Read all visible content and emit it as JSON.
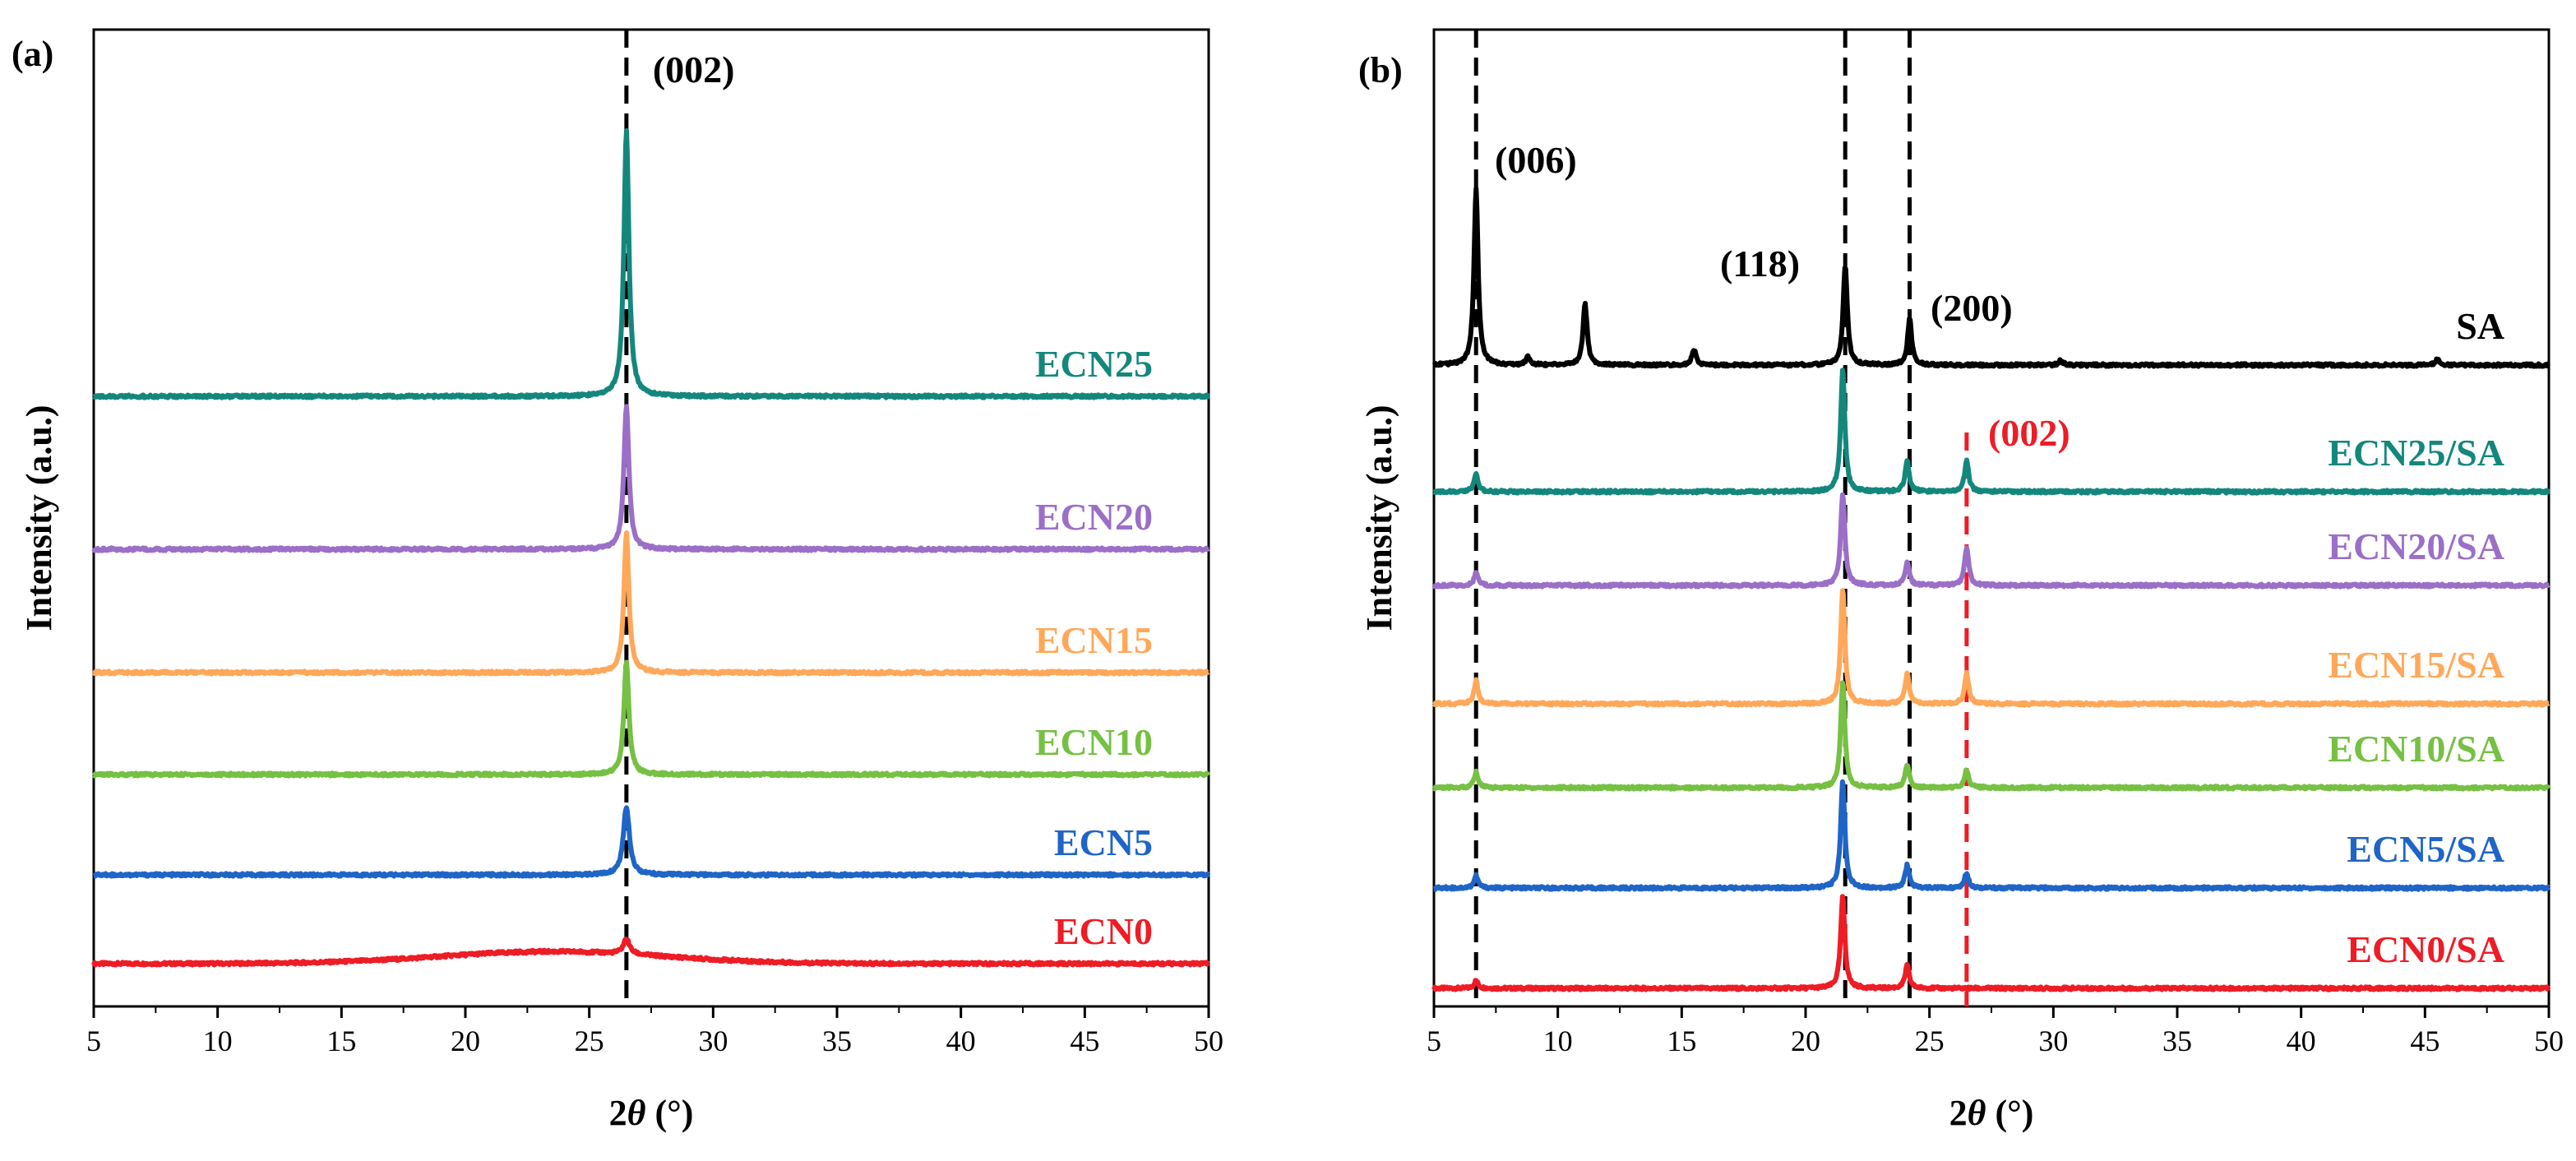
{
  "chart_data": [
    {
      "type": "line",
      "panel_label": "(a)",
      "xlabel_prefix": "2",
      "xlabel_theta": "θ",
      "xlabel_suffix": " (°)",
      "ylabel": "Intensity (a.u.)",
      "xlim": [
        5,
        50
      ],
      "xticks": [
        5,
        10,
        15,
        20,
        25,
        30,
        35,
        40,
        45,
        50
      ],
      "y_ticks_shown": false,
      "reference_lines": [
        {
          "x": 26.5,
          "color": "#000000",
          "style": "dashed"
        }
      ],
      "annotations": [
        {
          "text": "(002)",
          "x": 26.5,
          "color": "#000000"
        }
      ],
      "series": [
        {
          "name": "ECN0",
          "color": "#ee1c25",
          "baseline": 0.0,
          "peaks": [
            {
              "x": 26.5,
              "height": 0.1,
              "width": 0.15
            }
          ],
          "humps": [
            {
              "x": 23.5,
              "height": 0.08,
              "width": 4.5
            }
          ]
        },
        {
          "name": "ECN5",
          "color": "#1f65c7",
          "baseline": 0.3,
          "peaks": [
            {
              "x": 26.5,
              "height": 0.45,
              "width": 0.15
            }
          ],
          "humps": []
        },
        {
          "name": "ECN10",
          "color": "#76c043",
          "baseline": 0.6,
          "peaks": [
            {
              "x": 26.5,
              "height": 0.75,
              "width": 0.12
            }
          ],
          "humps": []
        },
        {
          "name": "ECN15",
          "color": "#ffa85a",
          "baseline": 0.92,
          "peaks": [
            {
              "x": 26.5,
              "height": 0.92,
              "width": 0.12
            }
          ],
          "humps": []
        },
        {
          "name": "ECN20",
          "color": "#9b6fc7",
          "baseline": 1.35,
          "peaks": [
            {
              "x": 26.5,
              "height": 0.95,
              "width": 0.12
            }
          ],
          "humps": []
        },
        {
          "name": "ECN25",
          "color": "#14877d",
          "baseline": 1.82,
          "peaks": [
            {
              "x": 26.5,
              "height": 1.75,
              "width": 0.12
            }
          ],
          "humps": []
        }
      ]
    },
    {
      "type": "line",
      "panel_label": "(b)",
      "xlabel_prefix": "2",
      "xlabel_theta": "θ",
      "xlabel_suffix": " (°)",
      "ylabel": "Intensity (a.u.)",
      "xlim": [
        5,
        50
      ],
      "xticks": [
        5,
        10,
        15,
        20,
        25,
        30,
        35,
        40,
        45,
        50
      ],
      "y_ticks_shown": false,
      "reference_lines": [
        {
          "x": 6.7,
          "color": "#000000",
          "style": "dashed"
        },
        {
          "x": 21.6,
          "color": "#000000",
          "style": "dashed"
        },
        {
          "x": 24.2,
          "color": "#000000",
          "style": "dashed"
        },
        {
          "x": 26.5,
          "color": "#ee1c25",
          "style": "dashed"
        }
      ],
      "annotations": [
        {
          "text": "(006)",
          "x": 6.7,
          "color": "#000000"
        },
        {
          "text": "(118)",
          "x": 21.6,
          "color": "#000000"
        },
        {
          "text": "(200)",
          "x": 24.2,
          "color": "#000000"
        },
        {
          "text": "(002)",
          "x": 26.5,
          "color": "#ee1c25"
        }
      ],
      "series": [
        {
          "name": "ECN0/SA",
          "color": "#ee1c25",
          "baseline": 0.0,
          "peaks": [
            {
              "x": 6.7,
              "height": 0.05,
              "width": 0.1
            },
            {
              "x": 21.5,
              "height": 0.6,
              "width": 0.1
            },
            {
              "x": 24.1,
              "height": 0.15,
              "width": 0.1
            }
          ],
          "humps": []
        },
        {
          "name": "ECN5/SA",
          "color": "#1f65c7",
          "baseline": 0.7,
          "peaks": [
            {
              "x": 6.7,
              "height": 0.08,
              "width": 0.1
            },
            {
              "x": 21.5,
              "height": 0.7,
              "width": 0.1
            },
            {
              "x": 24.1,
              "height": 0.15,
              "width": 0.1
            },
            {
              "x": 26.5,
              "height": 0.1,
              "width": 0.1
            }
          ],
          "humps": []
        },
        {
          "name": "ECN10/SA",
          "color": "#76c043",
          "baseline": 1.3,
          "peaks": [
            {
              "x": 6.7,
              "height": 0.1,
              "width": 0.1
            },
            {
              "x": 21.5,
              "height": 0.7,
              "width": 0.1
            },
            {
              "x": 24.1,
              "height": 0.15,
              "width": 0.1
            },
            {
              "x": 26.5,
              "height": 0.12,
              "width": 0.1
            }
          ],
          "humps": []
        },
        {
          "name": "ECN15/SA",
          "color": "#ffa85a",
          "baseline": 1.9,
          "peaks": [
            {
              "x": 6.7,
              "height": 0.15,
              "width": 0.1
            },
            {
              "x": 21.5,
              "height": 0.75,
              "width": 0.1
            },
            {
              "x": 24.1,
              "height": 0.2,
              "width": 0.1
            },
            {
              "x": 26.5,
              "height": 0.2,
              "width": 0.1
            }
          ],
          "humps": []
        },
        {
          "name": "ECN20/SA",
          "color": "#9b6fc7",
          "baseline": 2.6,
          "peaks": [
            {
              "x": 6.7,
              "height": 0.08,
              "width": 0.1
            },
            {
              "x": 21.5,
              "height": 0.6,
              "width": 0.1
            },
            {
              "x": 24.1,
              "height": 0.15,
              "width": 0.1
            },
            {
              "x": 26.5,
              "height": 0.25,
              "width": 0.1
            }
          ],
          "humps": []
        },
        {
          "name": "ECN25/SA",
          "color": "#14877d",
          "baseline": 3.05,
          "peaks": [
            {
              "x": 6.7,
              "height": 0.12,
              "width": 0.1
            },
            {
              "x": 21.5,
              "height": 0.8,
              "width": 0.1
            },
            {
              "x": 24.1,
              "height": 0.2,
              "width": 0.1
            },
            {
              "x": 26.5,
              "height": 0.2,
              "width": 0.1
            }
          ],
          "humps": []
        },
        {
          "name": "SA",
          "color": "#000000",
          "baseline": 4.0,
          "peaks": [
            {
              "x": 6.7,
              "height": 1.15,
              "width": 0.1
            },
            {
              "x": 8.8,
              "height": 0.05,
              "width": 0.1
            },
            {
              "x": 11.1,
              "height": 0.4,
              "width": 0.1
            },
            {
              "x": 15.5,
              "height": 0.1,
              "width": 0.1
            },
            {
              "x": 21.6,
              "height": 0.65,
              "width": 0.1
            },
            {
              "x": 24.2,
              "height": 0.3,
              "width": 0.1
            },
            {
              "x": 30.3,
              "height": 0.03,
              "width": 0.1
            },
            {
              "x": 45.5,
              "height": 0.04,
              "width": 0.1
            }
          ],
          "humps": []
        }
      ]
    }
  ]
}
